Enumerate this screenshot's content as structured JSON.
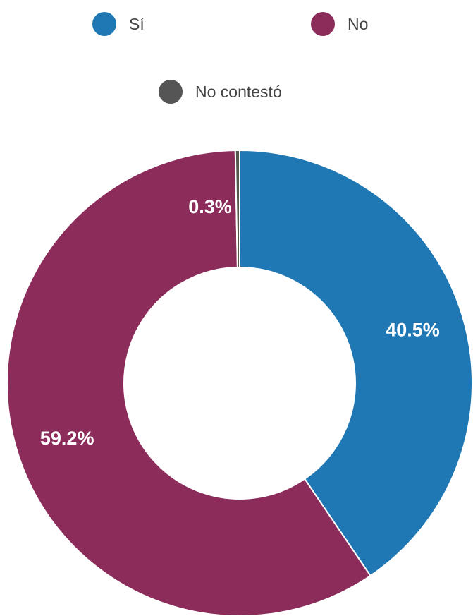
{
  "chart_data": {
    "type": "pie",
    "donut": true,
    "categories": [
      "Sí",
      "No",
      "No contestó"
    ],
    "values": [
      40.5,
      59.2,
      0.3
    ],
    "labels": [
      "40.5%",
      "59.2%",
      "0.3%"
    ],
    "colors": [
      "#1f77b4",
      "#8b2c5a",
      "#555555"
    ],
    "legend_position": "top"
  }
}
